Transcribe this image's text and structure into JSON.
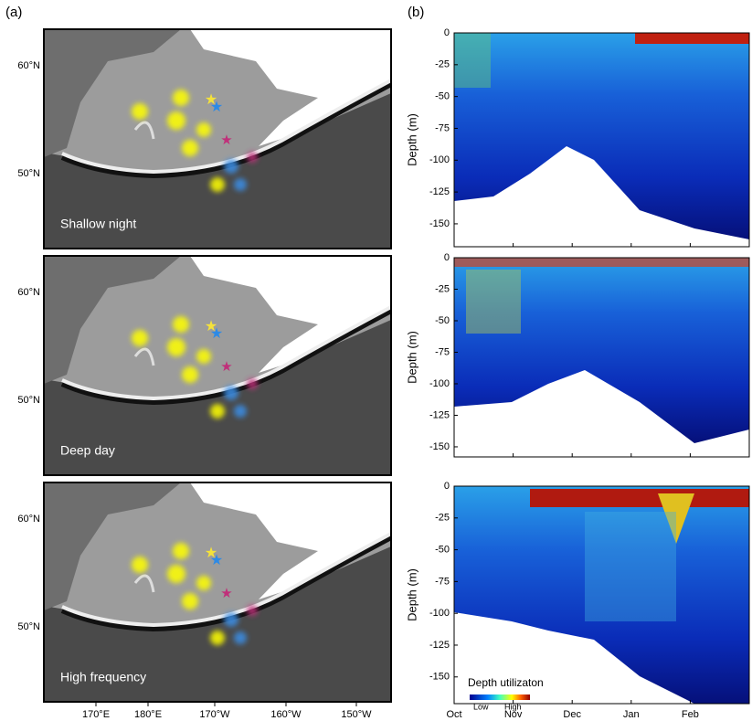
{
  "panel_a": {
    "label": "(a)",
    "lat_labels": [
      "60°N",
      "50°N"
    ],
    "lon_labels": [
      "170°E",
      "180°E",
      "170°W",
      "160°W",
      "150°W"
    ],
    "maps": [
      {
        "title": "Shallow night"
      },
      {
        "title": "Deep day"
      },
      {
        "title": "High frequency"
      }
    ]
  },
  "panel_b": {
    "label": "(b)",
    "ylabel": "Depth (m)",
    "xticks": [
      "Oct",
      "Nov",
      "Dec",
      "Jan",
      "Feb"
    ],
    "charts": [
      {
        "type": "heatmap",
        "ylim": [
          -168,
          0
        ],
        "yticks": [
          0,
          -25,
          -50,
          -75,
          -100,
          -125,
          -150
        ]
      },
      {
        "type": "heatmap",
        "ylim": [
          -158,
          0
        ],
        "yticks": [
          0,
          -25,
          -50,
          -75,
          -100,
          -125,
          -150
        ]
      },
      {
        "type": "heatmap",
        "ylim": [
          -171,
          0
        ],
        "yticks": [
          0,
          -25,
          -50,
          -75,
          -100,
          -125,
          -150
        ]
      }
    ],
    "colorbar": {
      "title": "Depth utilizaton",
      "low": "Low",
      "high": "High"
    }
  }
}
